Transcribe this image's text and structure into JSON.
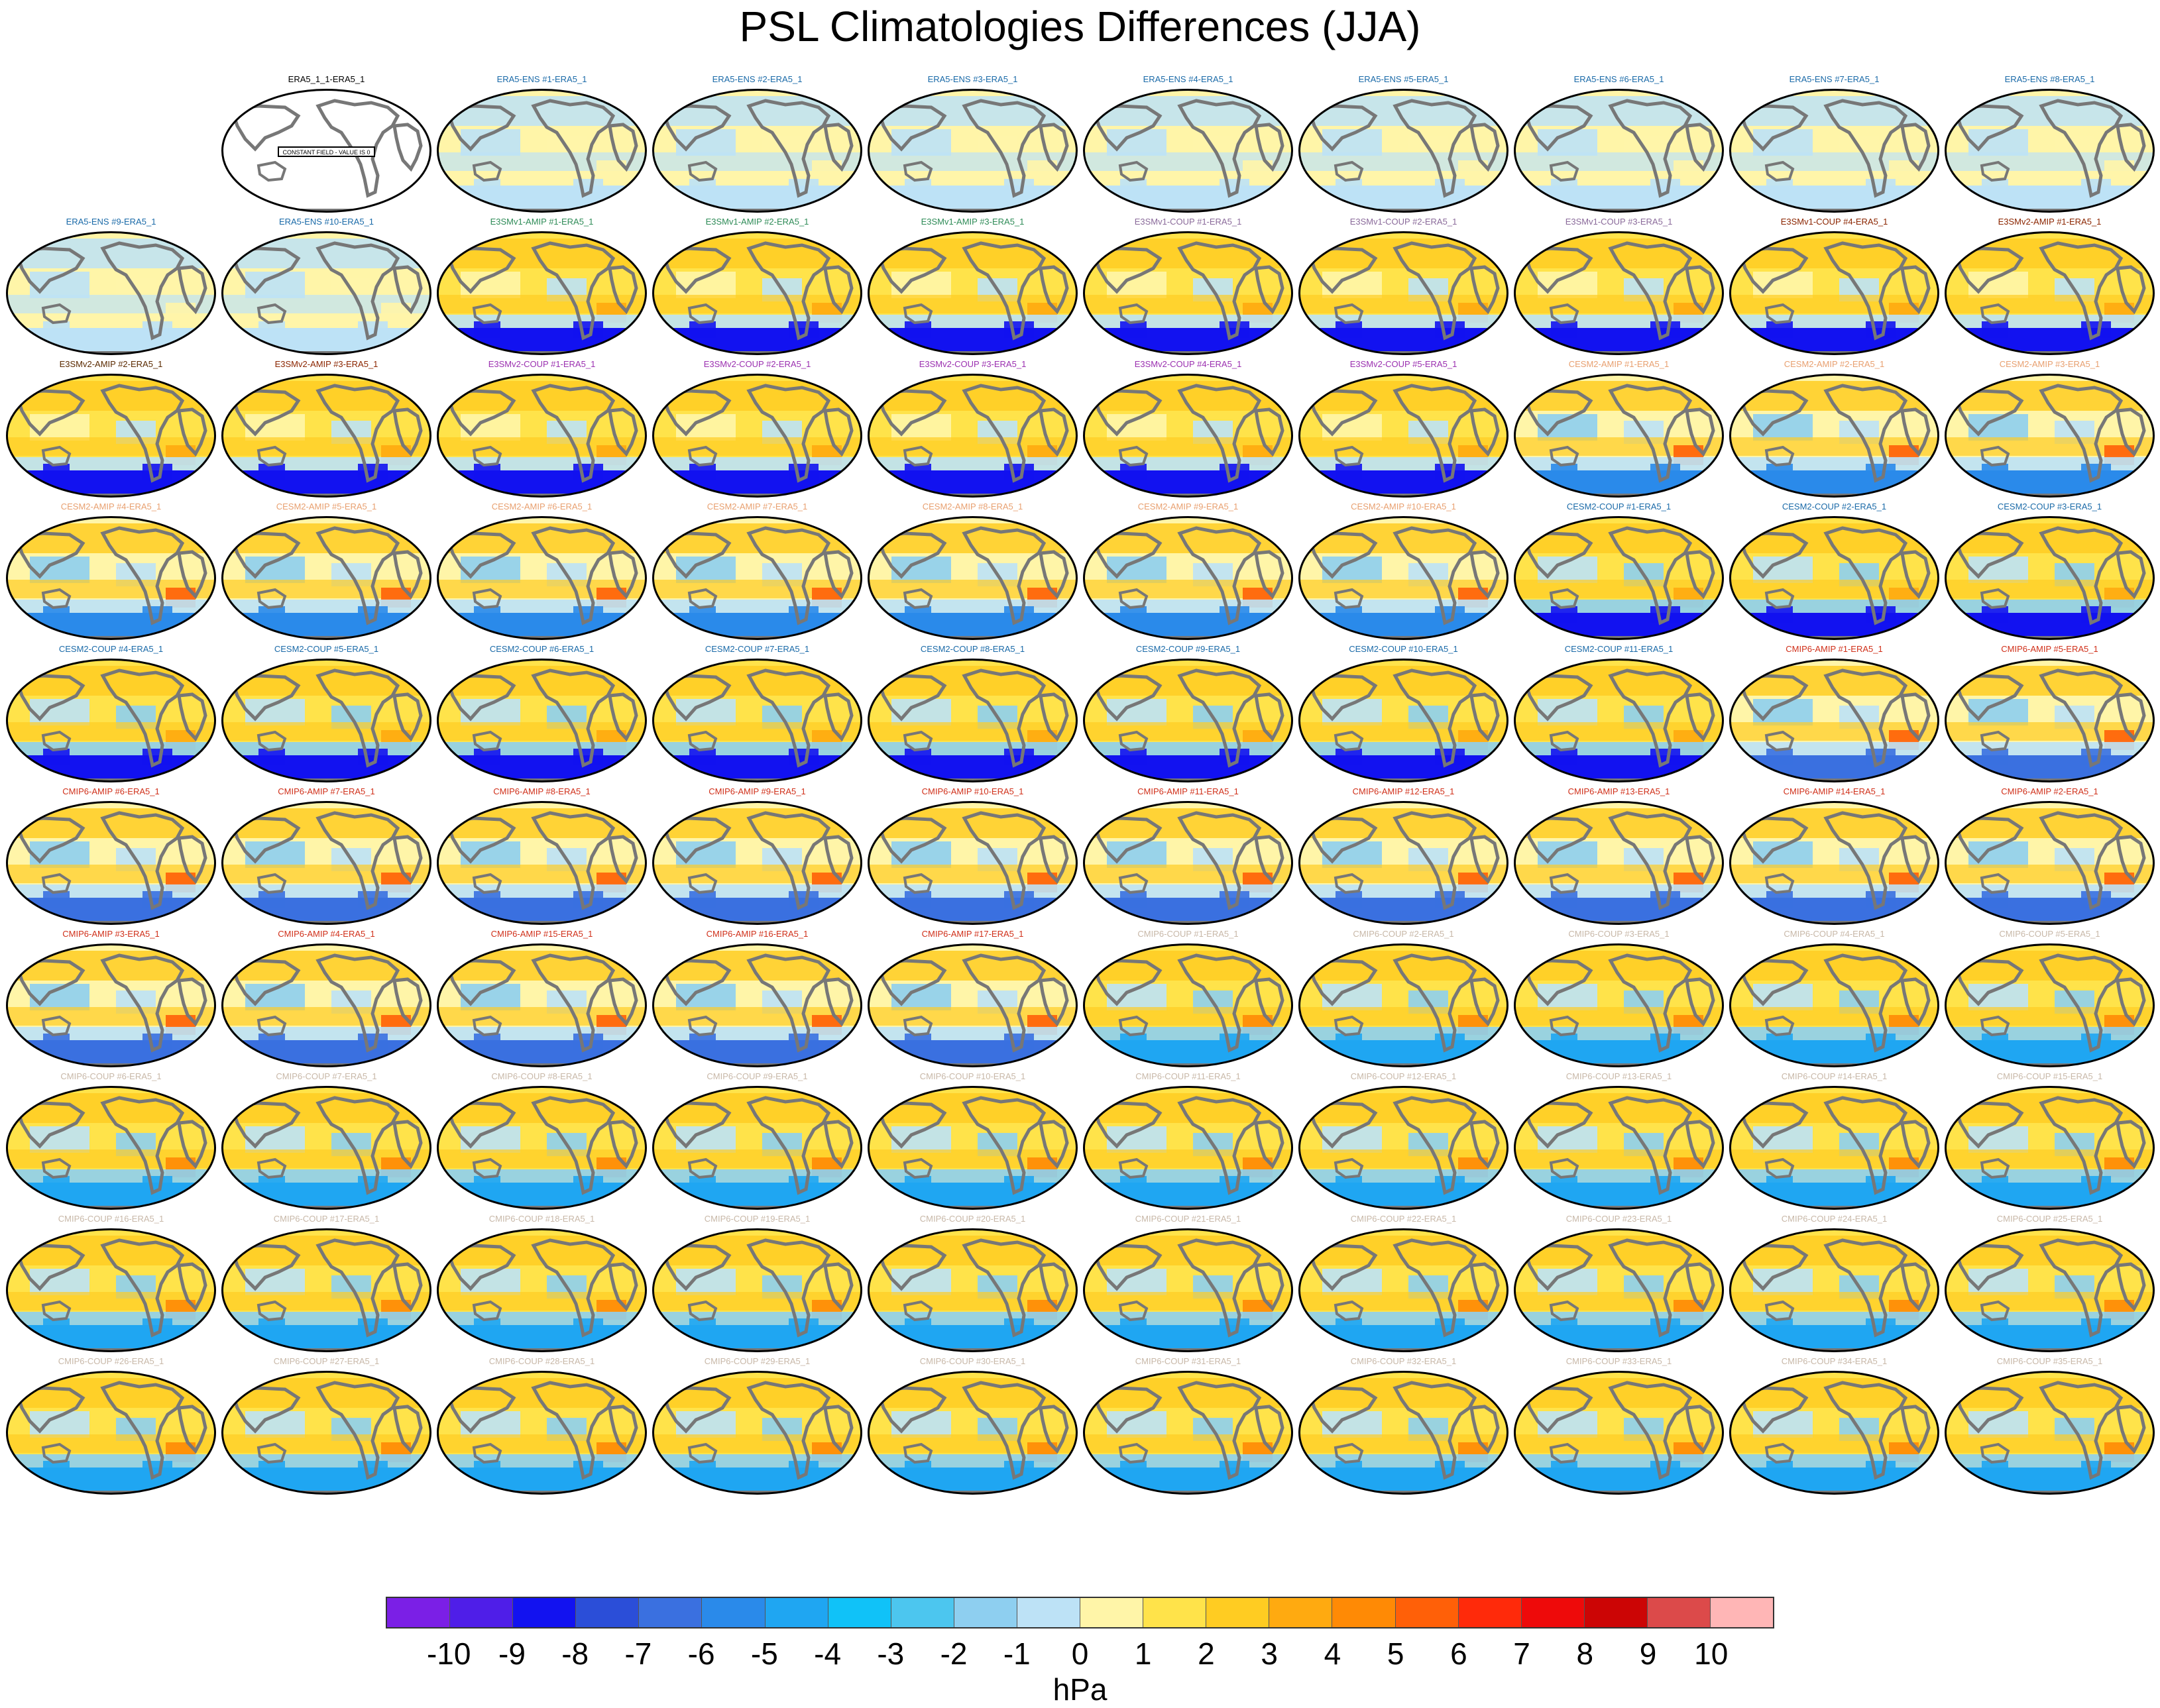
{
  "title": "PSL Climatologies Differences (JJA)",
  "units": "hPa",
  "colorbar": {
    "colors": [
      "#7b1fe6",
      "#4f1ee8",
      "#1212f0",
      "#2b4ed8",
      "#3a70e0",
      "#2a8aea",
      "#1fa6f2",
      "#10c2f8",
      "#4cc6ef",
      "#8ecff0",
      "#bde2f6",
      "#fff5a8",
      "#ffe34a",
      "#ffcc22",
      "#ffaa10",
      "#ff8a05",
      "#ff6008",
      "#ff2a0a",
      "#ee0a0a",
      "#cc0505",
      "#dc4a4a",
      "#ffb6b6"
    ],
    "tick_labels": [
      "-10",
      "-9",
      "-8",
      "-7",
      "-6",
      "-5",
      "-4",
      "-3",
      "-2",
      "-1",
      "0",
      "1",
      "2",
      "3",
      "4",
      "5",
      "6",
      "7",
      "8",
      "9",
      "10"
    ]
  },
  "first_panel_note": "CONSTANT FIELD - VALUE IS 0",
  "panels": [
    {
      "row": 0,
      "col": 1,
      "label": "ERA5_1_1-ERA5_1",
      "color": "#000000",
      "style": "blank"
    },
    {
      "row": 0,
      "col": 2,
      "label": "ERA5-ENS   #1-ERA5_1",
      "color": "#1a6aa8",
      "style": "ens"
    },
    {
      "row": 0,
      "col": 3,
      "label": "ERA5-ENS   #2-ERA5_1",
      "color": "#1a6aa8",
      "style": "ens"
    },
    {
      "row": 0,
      "col": 4,
      "label": "ERA5-ENS   #3-ERA5_1",
      "color": "#1a6aa8",
      "style": "ens"
    },
    {
      "row": 0,
      "col": 5,
      "label": "ERA5-ENS   #4-ERA5_1",
      "color": "#1a6aa8",
      "style": "ens"
    },
    {
      "row": 0,
      "col": 6,
      "label": "ERA5-ENS   #5-ERA5_1",
      "color": "#1a6aa8",
      "style": "ens"
    },
    {
      "row": 0,
      "col": 7,
      "label": "ERA5-ENS   #6-ERA5_1",
      "color": "#1a6aa8",
      "style": "ens"
    },
    {
      "row": 0,
      "col": 8,
      "label": "ERA5-ENS   #7-ERA5_1",
      "color": "#1a6aa8",
      "style": "ens"
    },
    {
      "row": 0,
      "col": 9,
      "label": "ERA5-ENS   #8-ERA5_1",
      "color": "#1a6aa8",
      "style": "ens"
    },
    {
      "row": 1,
      "col": 0,
      "label": "ERA5-ENS   #9-ERA5_1",
      "color": "#1a6aa8",
      "style": "ens"
    },
    {
      "row": 1,
      "col": 1,
      "label": "ERA5-ENS   #10-ERA5_1",
      "color": "#1a6aa8",
      "style": "ens"
    },
    {
      "row": 1,
      "col": 2,
      "label": "E3SMv1-AMIP #1-ERA5_1",
      "color": "#2e8b57",
      "style": "e3sm"
    },
    {
      "row": 1,
      "col": 3,
      "label": "E3SMv1-AMIP #2-ERA5_1",
      "color": "#2e8b57",
      "style": "e3sm"
    },
    {
      "row": 1,
      "col": 4,
      "label": "E3SMv1-AMIP #3-ERA5_1",
      "color": "#2e8b57",
      "style": "e3sm"
    },
    {
      "row": 1,
      "col": 5,
      "label": "E3SMv1-COUP #1-ERA5_1",
      "color": "#8a6a9a",
      "style": "e3sm"
    },
    {
      "row": 1,
      "col": 6,
      "label": "E3SMv1-COUP #2-ERA5_1",
      "color": "#8a6a9a",
      "style": "e3sm"
    },
    {
      "row": 1,
      "col": 7,
      "label": "E3SMv1-COUP #3-ERA5_1",
      "color": "#8a6a9a",
      "style": "e3sm"
    },
    {
      "row": 1,
      "col": 8,
      "label": "E3SMv1-COUP #4-ERA5_1",
      "color": "#8b2500",
      "style": "e3sm"
    },
    {
      "row": 1,
      "col": 9,
      "label": "E3SMv2-AMIP #1-ERA5_1",
      "color": "#8b2500",
      "style": "e3sm"
    },
    {
      "row": 2,
      "col": 0,
      "label": "E3SMv2-AMIP #2-ERA5_1",
      "color": "#5a2a00",
      "style": "e3sm"
    },
    {
      "row": 2,
      "col": 1,
      "label": "E3SMv2-AMIP #3-ERA5_1",
      "color": "#8b2500",
      "style": "e3sm"
    },
    {
      "row": 2,
      "col": 2,
      "label": "E3SMv2-COUP #1-ERA5_1",
      "color": "#9b30b0",
      "style": "e3sm"
    },
    {
      "row": 2,
      "col": 3,
      "label": "E3SMv2-COUP #2-ERA5_1",
      "color": "#9b30b0",
      "style": "e3sm"
    },
    {
      "row": 2,
      "col": 4,
      "label": "E3SMv2-COUP #3-ERA5_1",
      "color": "#9b30b0",
      "style": "e3sm"
    },
    {
      "row": 2,
      "col": 5,
      "label": "E3SMv2-COUP #4-ERA5_1",
      "color": "#9b30b0",
      "style": "e3sm"
    },
    {
      "row": 2,
      "col": 6,
      "label": "E3SMv2-COUP #5-ERA5_1",
      "color": "#9b30b0",
      "style": "e3sm"
    },
    {
      "row": 2,
      "col": 7,
      "label": "CESM2-AMIP #1-ERA5_1",
      "color": "#e8a070",
      "style": "cesm"
    },
    {
      "row": 2,
      "col": 8,
      "label": "CESM2-AMIP #2-ERA5_1",
      "color": "#e8a070",
      "style": "cesm"
    },
    {
      "row": 2,
      "col": 9,
      "label": "CESM2-AMIP #3-ERA5_1",
      "color": "#e8a070",
      "style": "cesm"
    },
    {
      "row": 3,
      "col": 0,
      "label": "CESM2-AMIP #4-ERA5_1",
      "color": "#e8a070",
      "style": "cesm"
    },
    {
      "row": 3,
      "col": 1,
      "label": "CESM2-AMIP #5-ERA5_1",
      "color": "#e8a070",
      "style": "cesm"
    },
    {
      "row": 3,
      "col": 2,
      "label": "CESM2-AMIP #6-ERA5_1",
      "color": "#e8a070",
      "style": "cesm"
    },
    {
      "row": 3,
      "col": 3,
      "label": "CESM2-AMIP #7-ERA5_1",
      "color": "#e8a070",
      "style": "cesm"
    },
    {
      "row": 3,
      "col": 4,
      "label": "CESM2-AMIP #8-ERA5_1",
      "color": "#e8a070",
      "style": "cesm"
    },
    {
      "row": 3,
      "col": 5,
      "label": "CESM2-AMIP #9-ERA5_1",
      "color": "#e8a070",
      "style": "cesm"
    },
    {
      "row": 3,
      "col": 6,
      "label": "CESM2-AMIP #10-ERA5_1",
      "color": "#e8a070",
      "style": "cesm"
    },
    {
      "row": 3,
      "col": 7,
      "label": "CESM2-COUP #1-ERA5_1",
      "color": "#1a6aa8",
      "style": "cesmc"
    },
    {
      "row": 3,
      "col": 8,
      "label": "CESM2-COUP #2-ERA5_1",
      "color": "#1a6aa8",
      "style": "cesmc"
    },
    {
      "row": 3,
      "col": 9,
      "label": "CESM2-COUP #3-ERA5_1",
      "color": "#1a6aa8",
      "style": "cesmc"
    },
    {
      "row": 4,
      "col": 0,
      "label": "CESM2-COUP #4-ERA5_1",
      "color": "#1a6aa8",
      "style": "cesmc"
    },
    {
      "row": 4,
      "col": 1,
      "label": "CESM2-COUP #5-ERA5_1",
      "color": "#1a6aa8",
      "style": "cesmc"
    },
    {
      "row": 4,
      "col": 2,
      "label": "CESM2-COUP #6-ERA5_1",
      "color": "#1a6aa8",
      "style": "cesmc"
    },
    {
      "row": 4,
      "col": 3,
      "label": "CESM2-COUP #7-ERA5_1",
      "color": "#1a6aa8",
      "style": "cesmc"
    },
    {
      "row": 4,
      "col": 4,
      "label": "CESM2-COUP #8-ERA5_1",
      "color": "#1a6aa8",
      "style": "cesmc"
    },
    {
      "row": 4,
      "col": 5,
      "label": "CESM2-COUP #9-ERA5_1",
      "color": "#1a6aa8",
      "style": "cesmc"
    },
    {
      "row": 4,
      "col": 6,
      "label": "CESM2-COUP #10-ERA5_1",
      "color": "#1a6aa8",
      "style": "cesmc"
    },
    {
      "row": 4,
      "col": 7,
      "label": "CESM2-COUP #11-ERA5_1",
      "color": "#1a6aa8",
      "style": "cesmc"
    },
    {
      "row": 4,
      "col": 8,
      "label": "CMIP6-AMIP #1-ERA5_1",
      "color": "#d0301a",
      "style": "cmipa"
    },
    {
      "row": 4,
      "col": 9,
      "label": "CMIP6-AMIP #5-ERA5_1",
      "color": "#d0301a",
      "style": "cmipa"
    },
    {
      "row": 5,
      "col": 0,
      "label": "CMIP6-AMIP #6-ERA5_1",
      "color": "#d0301a",
      "style": "cmipa"
    },
    {
      "row": 5,
      "col": 1,
      "label": "CMIP6-AMIP #7-ERA5_1",
      "color": "#d0301a",
      "style": "cmipa"
    },
    {
      "row": 5,
      "col": 2,
      "label": "CMIP6-AMIP #8-ERA5_1",
      "color": "#d0301a",
      "style": "cmipa"
    },
    {
      "row": 5,
      "col": 3,
      "label": "CMIP6-AMIP #9-ERA5_1",
      "color": "#d0301a",
      "style": "cmipa"
    },
    {
      "row": 5,
      "col": 4,
      "label": "CMIP6-AMIP #10-ERA5_1",
      "color": "#d0301a",
      "style": "cmipa"
    },
    {
      "row": 5,
      "col": 5,
      "label": "CMIP6-AMIP #11-ERA5_1",
      "color": "#d0301a",
      "style": "cmipa"
    },
    {
      "row": 5,
      "col": 6,
      "label": "CMIP6-AMIP #12-ERA5_1",
      "color": "#d0301a",
      "style": "cmipa"
    },
    {
      "row": 5,
      "col": 7,
      "label": "CMIP6-AMIP #13-ERA5_1",
      "color": "#d0301a",
      "style": "cmipa"
    },
    {
      "row": 5,
      "col": 8,
      "label": "CMIP6-AMIP #14-ERA5_1",
      "color": "#d0301a",
      "style": "cmipa"
    },
    {
      "row": 5,
      "col": 9,
      "label": "CMIP6-AMIP #2-ERA5_1",
      "color": "#d0301a",
      "style": "cmipa"
    },
    {
      "row": 6,
      "col": 0,
      "label": "CMIP6-AMIP #3-ERA5_1",
      "color": "#d0301a",
      "style": "cmipa"
    },
    {
      "row": 6,
      "col": 1,
      "label": "CMIP6-AMIP #4-ERA5_1",
      "color": "#d0301a",
      "style": "cmipa"
    },
    {
      "row": 6,
      "col": 2,
      "label": "CMIP6-AMIP #15-ERA5_1",
      "color": "#d0301a",
      "style": "cmipa"
    },
    {
      "row": 6,
      "col": 3,
      "label": "CMIP6-AMIP #16-ERA5_1",
      "color": "#d0301a",
      "style": "cmipa"
    },
    {
      "row": 6,
      "col": 4,
      "label": "CMIP6-AMIP #17-ERA5_1",
      "color": "#d0301a",
      "style": "cmipa"
    },
    {
      "row": 6,
      "col": 5,
      "label": "CMIP6-COUP #1-ERA5_1",
      "color": "#c8b8a8",
      "style": "cmipc"
    },
    {
      "row": 6,
      "col": 6,
      "label": "CMIP6-COUP #2-ERA5_1",
      "color": "#c8b8a8",
      "style": "cmipc"
    },
    {
      "row": 6,
      "col": 7,
      "label": "CMIP6-COUP #3-ERA5_1",
      "color": "#c8b8a8",
      "style": "cmipc"
    },
    {
      "row": 6,
      "col": 8,
      "label": "CMIP6-COUP #4-ERA5_1",
      "color": "#c8b8a8",
      "style": "cmipc"
    },
    {
      "row": 6,
      "col": 9,
      "label": "CMIP6-COUP #5-ERA5_1",
      "color": "#c8b8a8",
      "style": "cmipc"
    },
    {
      "row": 7,
      "col": 0,
      "label": "CMIP6-COUP #6-ERA5_1",
      "color": "#c8b8a8",
      "style": "cmipc"
    },
    {
      "row": 7,
      "col": 1,
      "label": "CMIP6-COUP #7-ERA5_1",
      "color": "#c8b8a8",
      "style": "cmipc"
    },
    {
      "row": 7,
      "col": 2,
      "label": "CMIP6-COUP #8-ERA5_1",
      "color": "#c8b8a8",
      "style": "cmipc"
    },
    {
      "row": 7,
      "col": 3,
      "label": "CMIP6-COUP #9-ERA5_1",
      "color": "#c8b8a8",
      "style": "cmipc"
    },
    {
      "row": 7,
      "col": 4,
      "label": "CMIP6-COUP #10-ERA5_1",
      "color": "#c8b8a8",
      "style": "cmipc"
    },
    {
      "row": 7,
      "col": 5,
      "label": "CMIP6-COUP #11-ERA5_1",
      "color": "#c8b8a8",
      "style": "cmipc"
    },
    {
      "row": 7,
      "col": 6,
      "label": "CMIP6-COUP #12-ERA5_1",
      "color": "#c8b8a8",
      "style": "cmipc"
    },
    {
      "row": 7,
      "col": 7,
      "label": "CMIP6-COUP #13-ERA5_1",
      "color": "#c8b8a8",
      "style": "cmipc"
    },
    {
      "row": 7,
      "col": 8,
      "label": "CMIP6-COUP #14-ERA5_1",
      "color": "#c8b8a8",
      "style": "cmipc"
    },
    {
      "row": 7,
      "col": 9,
      "label": "CMIP6-COUP #15-ERA5_1",
      "color": "#c8b8a8",
      "style": "cmipc"
    },
    {
      "row": 8,
      "col": 0,
      "label": "CMIP6-COUP #16-ERA5_1",
      "color": "#c8b8a8",
      "style": "cmipc"
    },
    {
      "row": 8,
      "col": 1,
      "label": "CMIP6-COUP #17-ERA5_1",
      "color": "#c8b8a8",
      "style": "cmipc"
    },
    {
      "row": 8,
      "col": 2,
      "label": "CMIP6-COUP #18-ERA5_1",
      "color": "#c8b8a8",
      "style": "cmipc"
    },
    {
      "row": 8,
      "col": 3,
      "label": "CMIP6-COUP #19-ERA5_1",
      "color": "#c8b8a8",
      "style": "cmipc"
    },
    {
      "row": 8,
      "col": 4,
      "label": "CMIP6-COUP #20-ERA5_1",
      "color": "#c8b8a8",
      "style": "cmipc"
    },
    {
      "row": 8,
      "col": 5,
      "label": "CMIP6-COUP #21-ERA5_1",
      "color": "#c8b8a8",
      "style": "cmipc"
    },
    {
      "row": 8,
      "col": 6,
      "label": "CMIP6-COUP #22-ERA5_1",
      "color": "#c8b8a8",
      "style": "cmipc"
    },
    {
      "row": 8,
      "col": 7,
      "label": "CMIP6-COUP #23-ERA5_1",
      "color": "#c8b8a8",
      "style": "cmipc"
    },
    {
      "row": 8,
      "col": 8,
      "label": "CMIP6-COUP #24-ERA5_1",
      "color": "#c8b8a8",
      "style": "cmipc"
    },
    {
      "row": 8,
      "col": 9,
      "label": "CMIP6-COUP #25-ERA5_1",
      "color": "#c8b8a8",
      "style": "cmipc"
    },
    {
      "row": 9,
      "col": 0,
      "label": "CMIP6-COUP #26-ERA5_1",
      "color": "#c8b8a8",
      "style": "cmipc"
    },
    {
      "row": 9,
      "col": 1,
      "label": "CMIP6-COUP #27-ERA5_1",
      "color": "#c8b8a8",
      "style": "cmipc"
    },
    {
      "row": 9,
      "col": 2,
      "label": "CMIP6-COUP #28-ERA5_1",
      "color": "#c8b8a8",
      "style": "cmipc"
    },
    {
      "row": 9,
      "col": 3,
      "label": "CMIP6-COUP #29-ERA5_1",
      "color": "#c8b8a8",
      "style": "cmipc"
    },
    {
      "row": 9,
      "col": 4,
      "label": "CMIP6-COUP #30-ERA5_1",
      "color": "#c8b8a8",
      "style": "cmipc"
    },
    {
      "row": 9,
      "col": 5,
      "label": "CMIP6-COUP #31-ERA5_1",
      "color": "#c8b8a8",
      "style": "cmipc"
    },
    {
      "row": 9,
      "col": 6,
      "label": "CMIP6-COUP #32-ERA5_1",
      "color": "#c8b8a8",
      "style": "cmipc"
    },
    {
      "row": 9,
      "col": 7,
      "label": "CMIP6-COUP #33-ERA5_1",
      "color": "#c8b8a8",
      "style": "cmipc"
    },
    {
      "row": 9,
      "col": 8,
      "label": "CMIP6-COUP #34-ERA5_1",
      "color": "#c8b8a8",
      "style": "cmipc"
    },
    {
      "row": 9,
      "col": 9,
      "label": "CMIP6-COUP #35-ERA5_1",
      "color": "#c8b8a8",
      "style": "cmipc"
    }
  ]
}
